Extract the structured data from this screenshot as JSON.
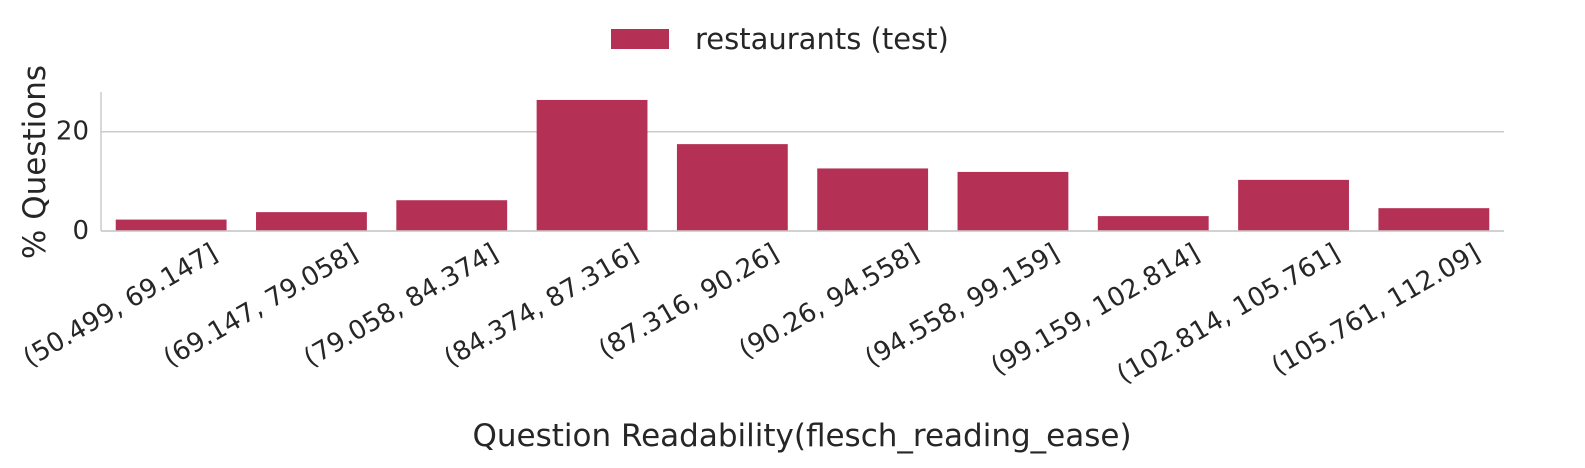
{
  "chart_data": {
    "type": "bar",
    "categories": [
      "(50.499, 69.147]",
      "(69.147, 79.058]",
      "(79.058, 84.374]",
      "(84.374, 87.316]",
      "(87.316, 90.26]",
      "(90.26, 94.558]",
      "(94.558, 99.159]",
      "(99.159, 102.814]",
      "(102.814, 105.761]",
      "(105.761, 112.09]"
    ],
    "series": [
      {
        "name": "restaurants (test)",
        "values": [
          2.3,
          3.8,
          6.2,
          26.4,
          17.5,
          12.6,
          11.9,
          3.0,
          10.3,
          4.6
        ],
        "color": "#b53055"
      }
    ],
    "xlabel": "Question Readability(flesch_reading_ease)",
    "ylabel": "% Questions",
    "ylim": [
      0,
      28
    ],
    "yticks": [
      0,
      20
    ],
    "grid": "horizontal",
    "legend": "top-center"
  }
}
